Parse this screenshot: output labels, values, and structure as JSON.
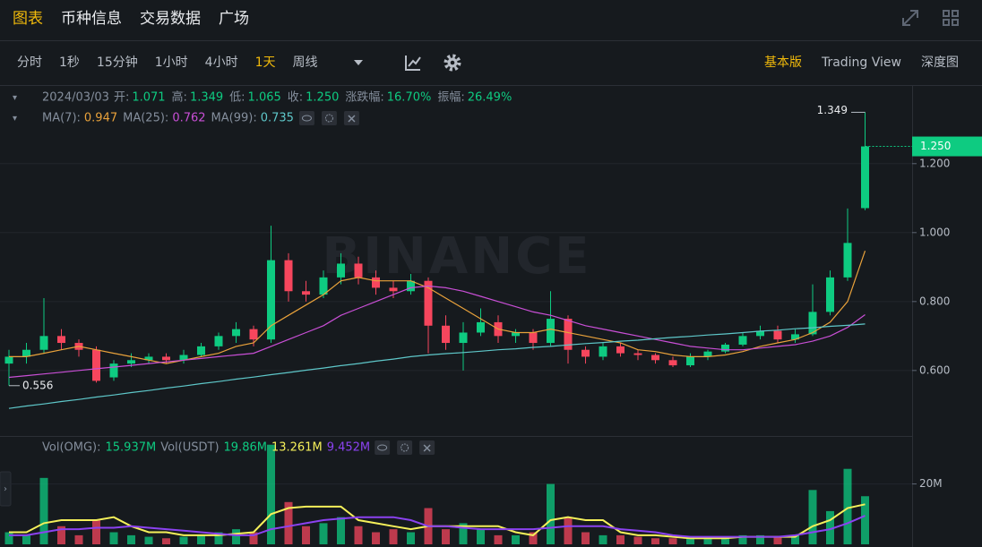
{
  "page": {
    "tabs": [
      "图表",
      "币种信息",
      "交易数据",
      "广场"
    ],
    "active_tab": 0,
    "intervals": [
      "分时",
      "1秒",
      "15分钟",
      "1小时",
      "4小时",
      "1天",
      "周线"
    ],
    "active_interval": 5,
    "views": [
      "基本版",
      "Trading View",
      "深度图"
    ],
    "active_view": 0
  },
  "chart_data": {
    "type": "candlestick",
    "header": {
      "date": "2024/03/03",
      "fields": [
        {
          "label": "开:",
          "value": "1.071"
        },
        {
          "label": "高:",
          "value": "1.349"
        },
        {
          "label": "低:",
          "value": "1.065"
        },
        {
          "label": "收:",
          "value": "1.250"
        },
        {
          "label": "涨跌幅:",
          "value": "16.70%"
        },
        {
          "label": "振幅:",
          "value": "26.49%"
        }
      ]
    },
    "watermark": "BINANCE",
    "up_color": "#0ecb81",
    "down_color": "#f6465d",
    "open": [
      0.62,
      0.64,
      0.66,
      0.7,
      0.68,
      0.66,
      0.58,
      0.62,
      0.63,
      0.64,
      0.63,
      0.645,
      0.67,
      0.7,
      0.72,
      0.69,
      0.92,
      0.83,
      0.82,
      0.87,
      0.91,
      0.87,
      0.84,
      0.83,
      0.86,
      0.73,
      0.68,
      0.71,
      0.74,
      0.7,
      0.71,
      0.68,
      0.75,
      0.66,
      0.64,
      0.67,
      0.65,
      0.645,
      0.63,
      0.615,
      0.64,
      0.655,
      0.675,
      0.7,
      0.715,
      0.69,
      0.705,
      0.77,
      0.87,
      1.071
    ],
    "high": [
      0.66,
      0.68,
      0.81,
      0.72,
      0.69,
      0.67,
      0.63,
      0.65,
      0.65,
      0.65,
      0.66,
      0.68,
      0.71,
      0.74,
      0.73,
      1.02,
      0.94,
      0.86,
      0.89,
      0.94,
      0.93,
      0.89,
      0.86,
      0.88,
      0.87,
      0.76,
      0.74,
      0.78,
      0.76,
      0.72,
      0.72,
      0.83,
      0.76,
      0.67,
      0.68,
      0.68,
      0.66,
      0.65,
      0.64,
      0.65,
      0.66,
      0.68,
      0.71,
      0.73,
      0.73,
      0.72,
      0.85,
      0.89,
      1.07,
      1.349
    ],
    "low": [
      0.556,
      0.62,
      0.65,
      0.66,
      0.64,
      0.565,
      0.57,
      0.61,
      0.62,
      0.62,
      0.62,
      0.64,
      0.66,
      0.68,
      0.67,
      0.68,
      0.8,
      0.8,
      0.81,
      0.85,
      0.85,
      0.82,
      0.81,
      0.82,
      0.65,
      0.66,
      0.6,
      0.7,
      0.68,
      0.68,
      0.66,
      0.67,
      0.62,
      0.62,
      0.63,
      0.64,
      0.63,
      0.62,
      0.61,
      0.61,
      0.63,
      0.65,
      0.67,
      0.69,
      0.68,
      0.68,
      0.7,
      0.76,
      0.86,
      1.065
    ],
    "close": [
      0.64,
      0.66,
      0.7,
      0.68,
      0.66,
      0.57,
      0.62,
      0.63,
      0.64,
      0.63,
      0.645,
      0.67,
      0.7,
      0.72,
      0.69,
      0.92,
      0.83,
      0.82,
      0.87,
      0.91,
      0.87,
      0.84,
      0.83,
      0.86,
      0.73,
      0.68,
      0.71,
      0.74,
      0.7,
      0.71,
      0.68,
      0.75,
      0.66,
      0.64,
      0.67,
      0.65,
      0.645,
      0.63,
      0.615,
      0.64,
      0.655,
      0.675,
      0.7,
      0.715,
      0.69,
      0.705,
      0.77,
      0.87,
      0.97,
      1.25
    ],
    "last_price_label": "1.250",
    "ylim": [
      0.41,
      1.428
    ],
    "yticks": [
      {
        "value": 0.6,
        "label": "0.600"
      },
      {
        "value": 0.8,
        "label": "0.800"
      },
      {
        "value": 1.0,
        "label": "1.000"
      },
      {
        "value": 1.2,
        "label": "1.200"
      }
    ],
    "grid": true,
    "series": [
      {
        "name": "MA(7):",
        "legend_value": "0.947",
        "color": "#e9a23b",
        "values": [
          0.64,
          0.64,
          0.65,
          0.66,
          0.67,
          0.66,
          0.65,
          0.64,
          0.63,
          0.62,
          0.63,
          0.64,
          0.65,
          0.67,
          0.68,
          0.73,
          0.76,
          0.79,
          0.82,
          0.86,
          0.87,
          0.86,
          0.86,
          0.86,
          0.84,
          0.81,
          0.78,
          0.75,
          0.72,
          0.71,
          0.71,
          0.72,
          0.71,
          0.7,
          0.69,
          0.68,
          0.66,
          0.655,
          0.645,
          0.64,
          0.64,
          0.645,
          0.655,
          0.67,
          0.68,
          0.69,
          0.71,
          0.74,
          0.8,
          0.947
        ]
      },
      {
        "name": "MA(25):",
        "legend_value": "0.762",
        "color": "#c94fd6",
        "values": [
          0.58,
          0.585,
          0.59,
          0.595,
          0.6,
          0.605,
          0.61,
          0.615,
          0.62,
          0.625,
          0.63,
          0.635,
          0.64,
          0.645,
          0.65,
          0.67,
          0.69,
          0.71,
          0.73,
          0.76,
          0.78,
          0.8,
          0.82,
          0.84,
          0.845,
          0.84,
          0.83,
          0.815,
          0.8,
          0.785,
          0.77,
          0.76,
          0.745,
          0.73,
          0.72,
          0.71,
          0.7,
          0.69,
          0.68,
          0.67,
          0.665,
          0.66,
          0.66,
          0.665,
          0.67,
          0.675,
          0.685,
          0.7,
          0.725,
          0.762
        ]
      },
      {
        "name": "MA(99):",
        "legend_value": "0.735",
        "color": "#5ec7c9",
        "values": [
          0.49,
          0.497,
          0.503,
          0.51,
          0.516,
          0.523,
          0.529,
          0.536,
          0.542,
          0.549,
          0.555,
          0.562,
          0.568,
          0.575,
          0.581,
          0.588,
          0.594,
          0.601,
          0.607,
          0.614,
          0.62,
          0.627,
          0.633,
          0.64,
          0.645,
          0.649,
          0.652,
          0.656,
          0.66,
          0.663,
          0.667,
          0.67,
          0.674,
          0.678,
          0.681,
          0.685,
          0.688,
          0.692,
          0.696,
          0.699,
          0.703,
          0.706,
          0.71,
          0.714,
          0.717,
          0.721,
          0.724,
          0.728,
          0.731,
          0.735
        ]
      }
    ],
    "volume": {
      "values": [
        4,
        3,
        22,
        6,
        3,
        8,
        4,
        3,
        2.5,
        2,
        2.5,
        3,
        4,
        5,
        4,
        33,
        14,
        6,
        7,
        9,
        6,
        4,
        5,
        4,
        12,
        5,
        7,
        5,
        3,
        3,
        4,
        20,
        9,
        4,
        3,
        3,
        2.5,
        2,
        2,
        2.5,
        2,
        2.5,
        3,
        3,
        2.5,
        3,
        18,
        11,
        25,
        15.937
      ],
      "ylim": [
        0,
        35
      ],
      "yticks": [
        {
          "value": 20,
          "label": "20M"
        }
      ],
      "legend": [
        {
          "text": "Vol(OMG):",
          "color": "#848e9c"
        },
        {
          "text": "15.937M",
          "color": "#0ecb81"
        },
        {
          "text": "Vol(USDT)",
          "color": "#848e9c"
        },
        {
          "text": "19.86M",
          "color": "#0ecb81"
        }
      ],
      "series": [
        {
          "legend_value": "13.261M",
          "color": "#f5f05a",
          "values": [
            4,
            4,
            7,
            8,
            8,
            8,
            9,
            6,
            4,
            4,
            3,
            3,
            3,
            3.5,
            4,
            10,
            12,
            12.5,
            12.5,
            12.5,
            8,
            7,
            6,
            5,
            6,
            6,
            6,
            6,
            6,
            4,
            3,
            8,
            9,
            8,
            8,
            4,
            3,
            3,
            2.5,
            2,
            2,
            2,
            2.5,
            2.5,
            2.5,
            2.5,
            6,
            8,
            12,
            13.261
          ]
        },
        {
          "legend_value": "9.452M",
          "color": "#8b42f0",
          "values": [
            3,
            3,
            4,
            5,
            5,
            5.5,
            5.5,
            6,
            5.5,
            5,
            4.5,
            4,
            3.5,
            3,
            3,
            5,
            6,
            7,
            8,
            8.5,
            9,
            9,
            9,
            8,
            6,
            6,
            5.5,
            5,
            5,
            5,
            5,
            5.5,
            6,
            6,
            6,
            5,
            4.5,
            4,
            3,
            2.5,
            2.5,
            2.5,
            2.5,
            2.5,
            2.5,
            3,
            4,
            5,
            7,
            9.452
          ]
        }
      ]
    }
  }
}
